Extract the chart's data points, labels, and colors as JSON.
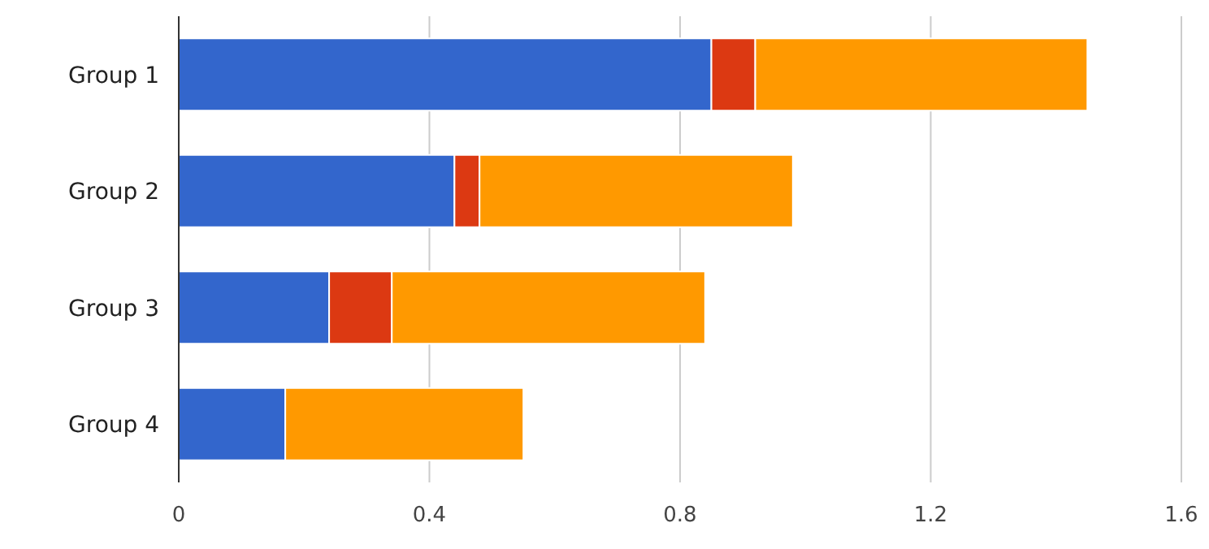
{
  "chart_data": {
    "type": "bar",
    "orientation": "horizontal",
    "stacked": true,
    "categories": [
      "Group 1",
      "Group 2",
      "Group 3",
      "Group 4"
    ],
    "series": [
      {
        "color": "#3366cc",
        "values": [
          0.85,
          0.44,
          0.24,
          0.17
        ]
      },
      {
        "color": "#dc3912",
        "values": [
          0.07,
          0.04,
          0.1,
          0
        ]
      },
      {
        "color": "#ff9900",
        "values": [
          0.53,
          0.5,
          0.5,
          0.38
        ]
      }
    ],
    "xlim": [
      0,
      1.6
    ],
    "xticks": [
      0,
      0.4,
      0.8,
      1.2,
      1.6
    ],
    "grid": "x"
  }
}
